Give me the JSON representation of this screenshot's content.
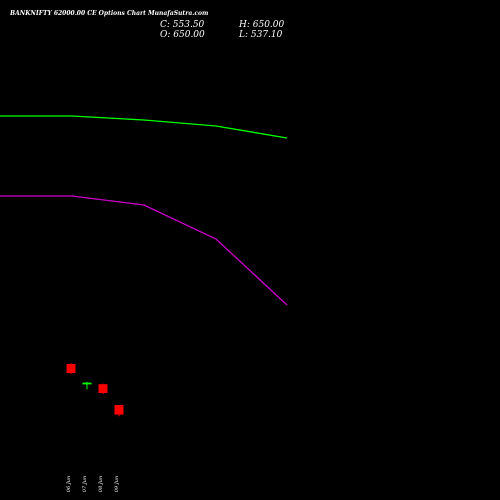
{
  "chart_data": {
    "type": "candlestick",
    "title": "BANKNIFTY 62000.00 CE Options Chart MunafaSutra.com",
    "ohlc_readout": {
      "close_label": "C: 553.50",
      "high_label": "H: 650.00",
      "open_label": "O: 650.00",
      "low_label": "L: 537.10"
    },
    "candles": [
      {
        "date": "06 Jun",
        "open": 1060,
        "high": 1068,
        "low": 958,
        "close": 970
      },
      {
        "date": "07 Jun",
        "open": 856,
        "high": 880,
        "low": 808,
        "close": 874
      },
      {
        "date": "08 Jun",
        "open": 858,
        "high": 864,
        "low": 757,
        "close": 770
      },
      {
        "date": "09 Jun",
        "open": 650,
        "high": 650,
        "low": 537.1,
        "close": 553.5
      }
    ],
    "series": [
      {
        "color": "#00ff00",
        "values": [
          3540,
          3540,
          3500,
          3440,
          3320
        ]
      },
      {
        "color": "#cc00cc",
        "values": [
          2740,
          2740,
          2650,
          2310,
          1650
        ]
      }
    ],
    "ylim": [
      0,
      4700
    ],
    "colors": {
      "up": "#00ff00",
      "down": "#ff0000",
      "background": "#000000"
    }
  }
}
